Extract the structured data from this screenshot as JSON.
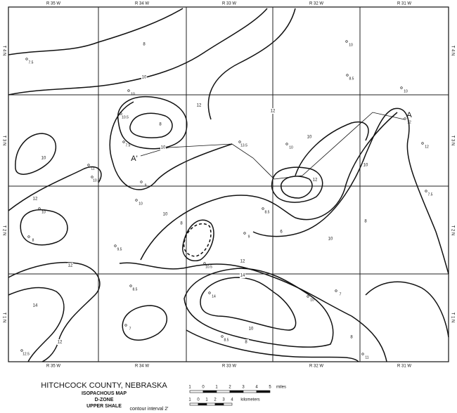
{
  "map": {
    "ranges_top": [
      "R 35 W",
      "R 34 W",
      "R 33 W",
      "R 32 W",
      "R 31 W"
    ],
    "ranges_bottom": [
      "R 35 W",
      "R 34 W",
      "R 33 W",
      "R 32 W",
      "R 31 W"
    ],
    "townships_left": [
      "T 4 N",
      "T 3 N",
      "T 2 N",
      "T 1 N"
    ],
    "townships_right": [
      "T 4 N",
      "T 3 N",
      "T 2 N",
      "T 1 N"
    ],
    "section_labels": [
      "A",
      "A'"
    ],
    "contour_labels": [
      "8",
      "10",
      "12",
      "8",
      "10",
      "10",
      "12",
      "12",
      "10",
      "10",
      "8",
      "10",
      "8",
      "12",
      "14",
      "12",
      "14",
      "12",
      "10",
      "8",
      "10",
      "6",
      "8",
      "12"
    ],
    "well_values": [
      "7.5",
      "10",
      "8.5",
      "10",
      "10",
      "10.5",
      "7.5",
      "11",
      "10.5",
      "9",
      "13.5",
      "10",
      "12",
      "12",
      "7.5",
      "10",
      "8.5",
      "9",
      "8",
      "9.5",
      "10.5",
      "8.5",
      "7",
      "14",
      "10",
      "7",
      "12.5",
      "11",
      "10",
      "8.5"
    ]
  },
  "legend": {
    "title": "HITCHCOCK COUNTY, NEBRASKA",
    "subtitle": "ISOPACHOUS MAP",
    "zone": "D-ZONE",
    "unit": "UPPER SHALE",
    "contour_interval": "contour interval 2'",
    "scale_miles": {
      "ticks": [
        "1",
        "0",
        "1",
        "2",
        "3",
        "4",
        "5"
      ],
      "unit": "miles"
    },
    "scale_km": {
      "ticks": [
        "1",
        "0",
        "1",
        "2",
        "3",
        "4"
      ],
      "unit": "kilometers"
    }
  }
}
